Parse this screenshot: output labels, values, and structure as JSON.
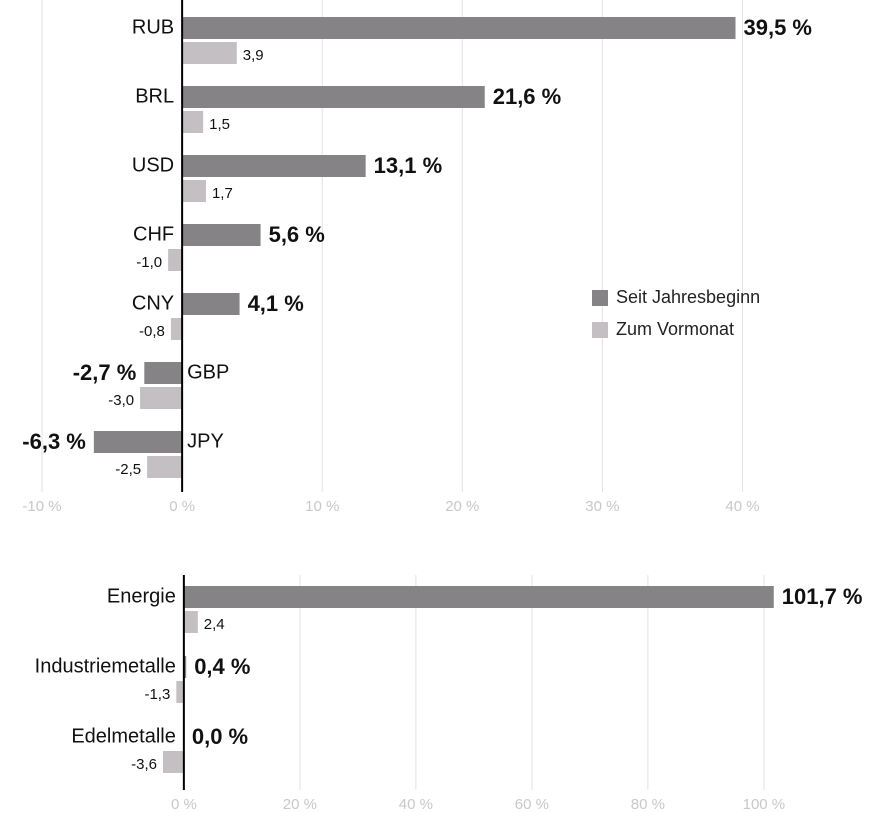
{
  "chart_data": [
    {
      "type": "barh",
      "categories": [
        "RUB",
        "BRL",
        "USD",
        "CHF",
        "CNY",
        "GBP",
        "JPY"
      ],
      "series": [
        {
          "name": "Seit Jahresbeginn",
          "color": "#858386",
          "values": [
            39.5,
            21.6,
            13.1,
            5.6,
            4.1,
            -2.7,
            -6.3
          ],
          "value_labels": [
            "39,5 %",
            "21,6 %",
            "13,1 %",
            "5,6 %",
            "4,1 %",
            "-2,7 %",
            "-6,3 %"
          ]
        },
        {
          "name": "Zum Vormonat",
          "color": "#c3bfc2",
          "values": [
            3.9,
            1.5,
            1.7,
            -1.0,
            -0.8,
            -3.0,
            -2.5
          ],
          "value_labels": [
            "3,9",
            "1,5",
            "1,7",
            "-1,0",
            "-0,8",
            "-3,0",
            "-2,5"
          ]
        }
      ],
      "xlim": [
        -13,
        49.6
      ],
      "xticks": [
        {
          "value": -10,
          "label": "-10 %"
        },
        {
          "value": 0,
          "label": "0 %"
        },
        {
          "value": 10,
          "label": "10 %"
        },
        {
          "value": 20,
          "label": "20 %"
        },
        {
          "value": 30,
          "label": "30 %"
        },
        {
          "value": 40,
          "label": "40 %"
        }
      ],
      "grid": true,
      "legend": "right"
    },
    {
      "type": "barh",
      "categories": [
        "Energie",
        "Industriemetalle",
        "Edelmetalle"
      ],
      "series": [
        {
          "name": "Seit Jahresbeginn",
          "color": "#858386",
          "values": [
            101.7,
            0.4,
            0.0
          ],
          "value_labels": [
            "101,7 %",
            "0,4 %",
            "0,0 %"
          ]
        },
        {
          "name": "Zum Vormonat",
          "color": "#c3bfc2",
          "values": [
            2.4,
            -1.3,
            -3.6
          ],
          "value_labels": [
            "2,4",
            "-1,3",
            "-3,6"
          ]
        }
      ],
      "xlim": [
        -31.7,
        119.5
      ],
      "xticks": [
        {
          "value": 0,
          "label": "0 %"
        },
        {
          "value": 20,
          "label": "20 %"
        },
        {
          "value": 40,
          "label": "40 %"
        },
        {
          "value": 60,
          "label": "60 %"
        },
        {
          "value": 80,
          "label": "80 %"
        },
        {
          "value": 100,
          "label": "100 %"
        }
      ],
      "grid": true
    }
  ]
}
